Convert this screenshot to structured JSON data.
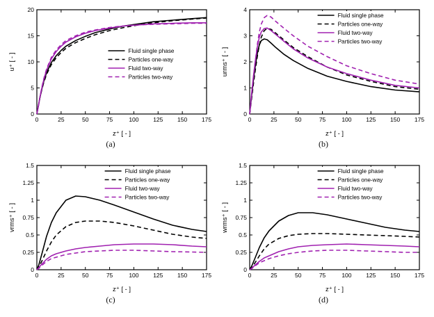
{
  "colors": {
    "black": "#000000",
    "purple": "#a020b0",
    "frame": "#000000"
  },
  "legend_labels": [
    "Fluid single phase",
    "Particles one-way",
    "Fluid two-way",
    "Particles two-way"
  ],
  "chart_data": [
    {
      "type": "line",
      "caption": "(a)",
      "xlabel": "z⁺ [ - ]",
      "ylabel": "u⁺ [ - ]",
      "xlim": [
        0,
        175
      ],
      "ylim": [
        0,
        20
      ],
      "xticks": [
        0,
        25,
        50,
        75,
        100,
        125,
        150,
        175
      ],
      "xtick_labels": [
        "0",
        "25",
        "50",
        "75",
        "100",
        "125",
        "150",
        "175"
      ],
      "yticks": [
        0,
        5,
        10,
        15,
        20
      ],
      "ytick_labels": [
        "0",
        "5",
        "10",
        "15",
        "20"
      ],
      "grid": false,
      "legend": {
        "x": 0.42,
        "y": 0.36
      },
      "x": [
        0,
        1,
        2,
        3,
        5,
        7,
        10,
        15,
        20,
        25,
        30,
        40,
        50,
        60,
        75,
        90,
        105,
        120,
        140,
        160,
        175
      ],
      "series": [
        {
          "name": "Fluid single phase",
          "color": "#000000",
          "dash": null,
          "values": [
            0,
            1,
            2,
            3,
            4.7,
            6.2,
            7.9,
            9.9,
            11.2,
            12.2,
            13.0,
            14.1,
            14.9,
            15.6,
            16.3,
            16.9,
            17.3,
            17.7,
            18.0,
            18.3,
            18.5
          ]
        },
        {
          "name": "Particles one-way",
          "color": "#000000",
          "dash": "6,4",
          "values": [
            0,
            1,
            2,
            3,
            4.6,
            6.0,
            7.6,
            9.5,
            10.8,
            11.8,
            12.6,
            13.7,
            14.5,
            15.2,
            16.0,
            16.6,
            17.1,
            17.5,
            17.9,
            18.2,
            18.4
          ]
        },
        {
          "name": "Fluid two-way",
          "color": "#a020b0",
          "dash": null,
          "values": [
            0,
            1,
            2,
            3.1,
            4.9,
            6.5,
            8.4,
            10.6,
            12.0,
            13.0,
            13.8,
            14.8,
            15.5,
            16.0,
            16.5,
            16.9,
            17.1,
            17.3,
            17.4,
            17.5,
            17.5
          ]
        },
        {
          "name": "Particles two-way",
          "color": "#a020b0",
          "dash": "6,4",
          "values": [
            0,
            1,
            2,
            3.1,
            5.0,
            6.7,
            8.6,
            10.9,
            12.3,
            13.3,
            14.1,
            15.0,
            15.7,
            16.1,
            16.6,
            16.9,
            17.1,
            17.2,
            17.3,
            17.4,
            17.4
          ]
        }
      ]
    },
    {
      "type": "line",
      "caption": "(b)",
      "xlabel": "z⁺ [ - ]",
      "ylabel": "urms⁺ [ - ]",
      "xlim": [
        0,
        175
      ],
      "ylim": [
        0,
        4
      ],
      "xticks": [
        0,
        25,
        50,
        75,
        100,
        125,
        150,
        175
      ],
      "xtick_labels": [
        "0",
        "25",
        "50",
        "75",
        "100",
        "125",
        "150",
        "175"
      ],
      "yticks": [
        0,
        1,
        2,
        3,
        4
      ],
      "ytick_labels": [
        "0",
        "1",
        "2",
        "3",
        "4"
      ],
      "grid": false,
      "legend": {
        "x": 0.4,
        "y": 0.02
      },
      "x": [
        0,
        1,
        2,
        4,
        6,
        8,
        10,
        12,
        15,
        18,
        22,
        27,
        35,
        45,
        60,
        80,
        100,
        125,
        150,
        175
      ],
      "series": [
        {
          "name": "Fluid single phase",
          "color": "#000000",
          "dash": null,
          "values": [
            0,
            0.35,
            0.7,
            1.35,
            1.9,
            2.35,
            2.65,
            2.82,
            2.88,
            2.85,
            2.72,
            2.55,
            2.3,
            2.05,
            1.75,
            1.45,
            1.25,
            1.05,
            0.92,
            0.85
          ]
        },
        {
          "name": "Particles one-way",
          "color": "#000000",
          "dash": "6,4",
          "values": [
            0,
            0.3,
            0.6,
            1.2,
            1.75,
            2.25,
            2.65,
            2.95,
            3.2,
            3.28,
            3.25,
            3.1,
            2.85,
            2.55,
            2.2,
            1.8,
            1.5,
            1.25,
            1.05,
            0.95
          ]
        },
        {
          "name": "Fluid two-way",
          "color": "#a020b0",
          "dash": null,
          "values": [
            0,
            0.4,
            0.8,
            1.5,
            2.1,
            2.6,
            2.95,
            3.15,
            3.28,
            3.3,
            3.2,
            3.05,
            2.8,
            2.5,
            2.15,
            1.8,
            1.55,
            1.3,
            1.1,
            1.0
          ]
        },
        {
          "name": "Particles two-way",
          "color": "#a020b0",
          "dash": "6,4",
          "values": [
            0,
            0.35,
            0.75,
            1.45,
            2.1,
            2.7,
            3.15,
            3.45,
            3.7,
            3.78,
            3.72,
            3.55,
            3.3,
            3.0,
            2.6,
            2.2,
            1.85,
            1.55,
            1.3,
            1.15
          ]
        }
      ]
    },
    {
      "type": "line",
      "caption": "(c)",
      "xlabel": "z⁺ [ - ]",
      "ylabel": "vrms⁺ [ - ]",
      "xlim": [
        0,
        175
      ],
      "ylim": [
        0,
        1.5
      ],
      "xticks": [
        0,
        25,
        50,
        75,
        100,
        125,
        150,
        175
      ],
      "xtick_labels": [
        "0",
        "25",
        "50",
        "75",
        "100",
        "125",
        "150",
        "175"
      ],
      "yticks": [
        0,
        0.25,
        0.5,
        0.75,
        1,
        1.25,
        1.5
      ],
      "ytick_labels": [
        "0",
        "0.25",
        "0.5",
        "0.75",
        "1",
        "1.25",
        "1.5"
      ],
      "grid": false,
      "legend": {
        "x": 0.4,
        "y": 0.02
      },
      "x": [
        0,
        2,
        5,
        10,
        15,
        20,
        30,
        40,
        50,
        65,
        80,
        100,
        120,
        140,
        160,
        175
      ],
      "series": [
        {
          "name": "Fluid single phase",
          "color": "#000000",
          "dash": null,
          "values": [
            0,
            0.07,
            0.22,
            0.48,
            0.68,
            0.82,
            1.0,
            1.06,
            1.05,
            1.0,
            0.93,
            0.83,
            0.73,
            0.64,
            0.58,
            0.55
          ]
        },
        {
          "name": "Particles one-way",
          "color": "#000000",
          "dash": "6,4",
          "values": [
            0,
            0.04,
            0.12,
            0.27,
            0.4,
            0.5,
            0.62,
            0.68,
            0.7,
            0.7,
            0.68,
            0.63,
            0.57,
            0.51,
            0.47,
            0.45
          ]
        },
        {
          "name": "Fluid two-way",
          "color": "#a020b0",
          "dash": null,
          "values": [
            0,
            0.03,
            0.08,
            0.15,
            0.2,
            0.23,
            0.27,
            0.3,
            0.32,
            0.34,
            0.36,
            0.37,
            0.37,
            0.36,
            0.34,
            0.33
          ]
        },
        {
          "name": "Particles two-way",
          "color": "#a020b0",
          "dash": "6,4",
          "values": [
            0,
            0.02,
            0.06,
            0.12,
            0.16,
            0.18,
            0.22,
            0.24,
            0.26,
            0.27,
            0.28,
            0.28,
            0.27,
            0.26,
            0.255,
            0.25
          ]
        }
      ]
    },
    {
      "type": "line",
      "caption": "(d)",
      "xlabel": "z⁺ [ - ]",
      "ylabel": "wrms⁺ [ - ]",
      "xlim": [
        0,
        175
      ],
      "ylim": [
        0,
        1.5
      ],
      "xticks": [
        0,
        25,
        50,
        75,
        100,
        125,
        150,
        175
      ],
      "xtick_labels": [
        "0",
        "25",
        "50",
        "75",
        "100",
        "125",
        "150",
        "175"
      ],
      "yticks": [
        0,
        0.25,
        0.5,
        0.75,
        1,
        1.25,
        1.5
      ],
      "ytick_labels": [
        "0",
        "0.25",
        "0.5",
        "0.75",
        "1",
        "1.25",
        "1.5"
      ],
      "grid": false,
      "legend": {
        "x": 0.4,
        "y": 0.02
      },
      "x": [
        0,
        2,
        5,
        10,
        15,
        20,
        30,
        40,
        50,
        65,
        80,
        100,
        120,
        140,
        160,
        175
      ],
      "series": [
        {
          "name": "Fluid single phase",
          "color": "#000000",
          "dash": null,
          "values": [
            0,
            0.05,
            0.15,
            0.32,
            0.46,
            0.56,
            0.7,
            0.78,
            0.82,
            0.82,
            0.79,
            0.73,
            0.67,
            0.61,
            0.57,
            0.55
          ]
        },
        {
          "name": "Particles one-way",
          "color": "#000000",
          "dash": "6,4",
          "values": [
            0,
            0.03,
            0.09,
            0.2,
            0.3,
            0.37,
            0.45,
            0.49,
            0.51,
            0.52,
            0.52,
            0.51,
            0.5,
            0.49,
            0.48,
            0.47
          ]
        },
        {
          "name": "Fluid two-way",
          "color": "#a020b0",
          "dash": null,
          "values": [
            0,
            0.02,
            0.06,
            0.12,
            0.17,
            0.2,
            0.26,
            0.3,
            0.33,
            0.35,
            0.36,
            0.37,
            0.36,
            0.35,
            0.34,
            0.33
          ]
        },
        {
          "name": "Particles two-way",
          "color": "#a020b0",
          "dash": "6,4",
          "values": [
            0,
            0.015,
            0.05,
            0.1,
            0.13,
            0.16,
            0.2,
            0.23,
            0.25,
            0.27,
            0.28,
            0.28,
            0.27,
            0.26,
            0.25,
            0.25
          ]
        }
      ]
    }
  ]
}
